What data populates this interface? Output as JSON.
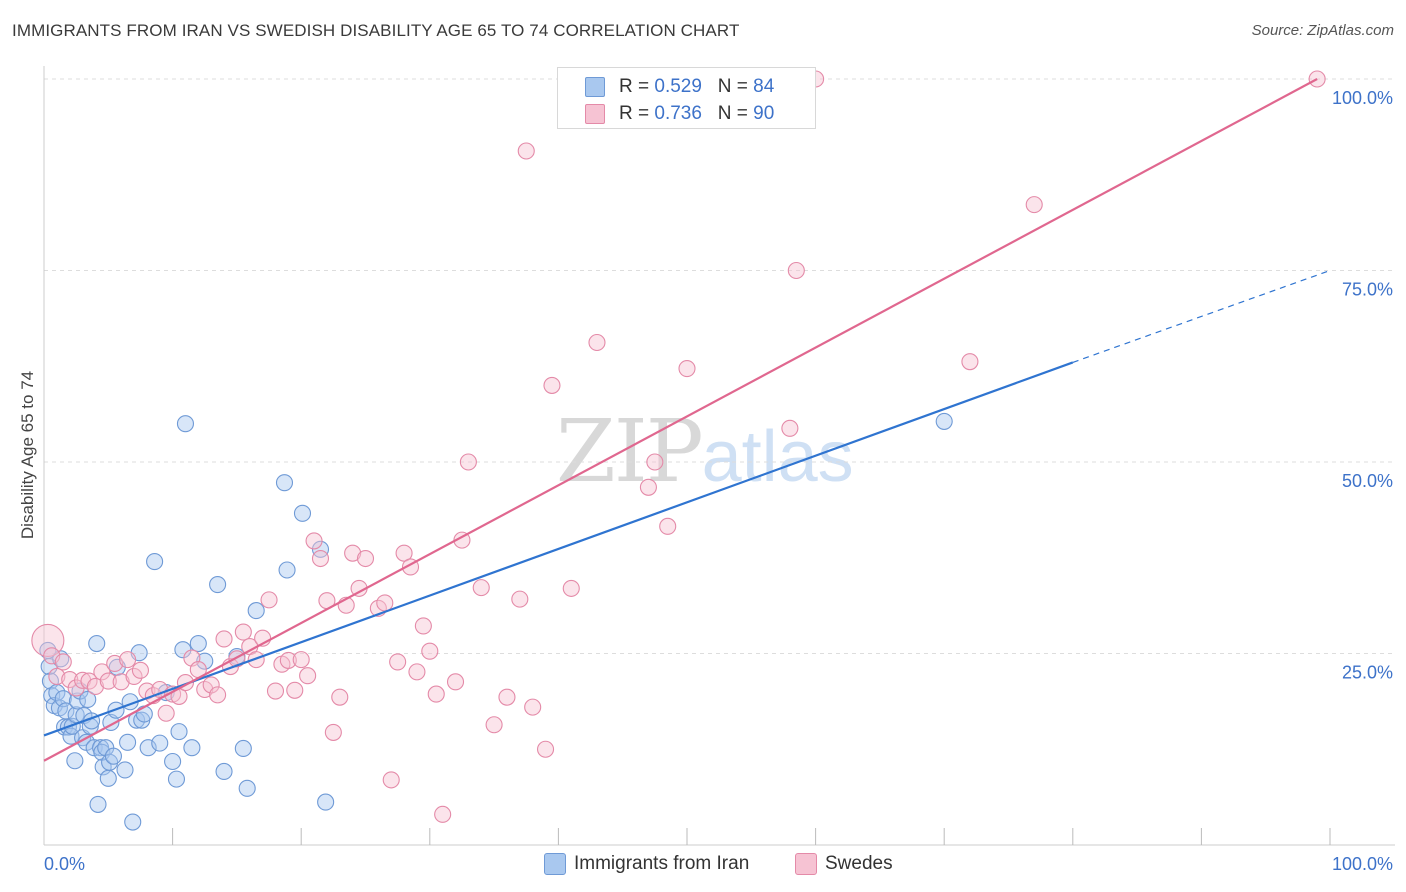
{
  "header": {
    "title": "IMMIGRANTS FROM IRAN VS SWEDISH DISABILITY AGE 65 TO 74 CORRELATION CHART",
    "source_label": "Source:",
    "source_value": "ZipAtlas.com"
  },
  "watermark": {
    "part1": "ZIP",
    "part2": "atlas"
  },
  "legend": {
    "rows": [
      {
        "r_label": "R = ",
        "r_value": "0.529",
        "n_label": "N = ",
        "n_value": "84"
      },
      {
        "r_label": "R = ",
        "r_value": "0.736",
        "n_label": "N = ",
        "n_value": "90"
      }
    ]
  },
  "bottom_legend": [
    "Immigrants from Iran",
    "Swedes"
  ],
  "colors": {
    "blue_fill": "#a9c8ef",
    "blue_stroke": "#6f9ad6",
    "blue_line": "#2f74d0",
    "pink_fill": "#f6c3d3",
    "pink_stroke": "#e48aa8",
    "pink_line": "#e0678f",
    "tick_text": "#3d72c9",
    "grid": "#dddddd"
  },
  "chart_data": {
    "type": "scatter",
    "title": "IMMIGRANTS FROM IRAN VS SWEDISH DISABILITY AGE 65 TO 74 CORRELATION CHART",
    "xlabel": "",
    "ylabel": "Disability Age 65 to 74",
    "xlim": [
      0,
      100
    ],
    "ylim": [
      0,
      100
    ],
    "x_tick_labels": [
      "0.0%",
      "100.0%"
    ],
    "y_tick_labels": [
      "25.0%",
      "50.0%",
      "75.0%",
      "100.0%"
    ],
    "y_ticks": [
      25,
      50,
      75,
      100
    ],
    "grid": true,
    "legend_position": "top-center",
    "series": [
      {
        "name": "Immigrants from Iran",
        "color": "#a9c8ef",
        "trend": {
          "x": [
            0,
            80
          ],
          "y": [
            14.3,
            63.0
          ],
          "dashed_to": [
            100,
            75.0
          ]
        },
        "points": [
          [
            0.3,
            25.4
          ],
          [
            0.4,
            23.3
          ],
          [
            0.5,
            21.4
          ],
          [
            0.6,
            19.5
          ],
          [
            0.8,
            18.2
          ],
          [
            1.0,
            19.9
          ],
          [
            1.2,
            17.9
          ],
          [
            1.3,
            24.3
          ],
          [
            1.5,
            19.1
          ],
          [
            1.6,
            15.4
          ],
          [
            1.7,
            17.5
          ],
          [
            1.9,
            15.4
          ],
          [
            2.1,
            14.2
          ],
          [
            2.2,
            15.5
          ],
          [
            2.4,
            11.0
          ],
          [
            2.5,
            17.0
          ],
          [
            2.6,
            18.8
          ],
          [
            2.8,
            20.1
          ],
          [
            3.0,
            14.0
          ],
          [
            3.1,
            16.9
          ],
          [
            3.3,
            13.4
          ],
          [
            3.4,
            19.0
          ],
          [
            3.6,
            15.5
          ],
          [
            3.7,
            16.2
          ],
          [
            3.9,
            12.7
          ],
          [
            4.1,
            26.3
          ],
          [
            4.2,
            5.3
          ],
          [
            4.4,
            12.7
          ],
          [
            4.5,
            12.1
          ],
          [
            4.6,
            10.2
          ],
          [
            4.8,
            12.7
          ],
          [
            5.0,
            8.7
          ],
          [
            5.1,
            10.8
          ],
          [
            5.2,
            16.0
          ],
          [
            5.4,
            11.6
          ],
          [
            5.6,
            17.6
          ],
          [
            5.7,
            23.2
          ],
          [
            6.3,
            9.8
          ],
          [
            6.5,
            13.4
          ],
          [
            6.7,
            18.7
          ],
          [
            6.9,
            3.0
          ],
          [
            7.2,
            16.3
          ],
          [
            7.4,
            25.1
          ],
          [
            7.6,
            16.3
          ],
          [
            7.8,
            17.1
          ],
          [
            8.1,
            12.7
          ],
          [
            8.6,
            37.0
          ],
          [
            9.0,
            13.3
          ],
          [
            9.5,
            19.9
          ],
          [
            10.0,
            10.9
          ],
          [
            10.3,
            8.6
          ],
          [
            10.5,
            14.8
          ],
          [
            10.8,
            25.5
          ],
          [
            11.0,
            55.0
          ],
          [
            11.5,
            12.7
          ],
          [
            12.0,
            26.3
          ],
          [
            12.5,
            24.0
          ],
          [
            13.5,
            34.0
          ],
          [
            14.0,
            9.6
          ],
          [
            15.0,
            24.6
          ],
          [
            15.5,
            12.6
          ],
          [
            15.8,
            7.4
          ],
          [
            16.5,
            30.6
          ],
          [
            18.7,
            47.3
          ],
          [
            18.9,
            35.9
          ],
          [
            20.1,
            43.3
          ],
          [
            21.5,
            38.6
          ],
          [
            21.9,
            5.6
          ],
          [
            70.0,
            55.3
          ]
        ]
      },
      {
        "name": "Swedes",
        "color": "#f6c3d3",
        "trend": {
          "x": [
            0,
            99
          ],
          "y": [
            11.0,
            100.0
          ]
        },
        "points": [
          [
            0.3,
            26.7
          ],
          [
            0.6,
            24.7
          ],
          [
            1.0,
            22.0
          ],
          [
            1.5,
            23.9
          ],
          [
            2.0,
            21.6
          ],
          [
            2.5,
            20.5
          ],
          [
            3.0,
            21.5
          ],
          [
            3.5,
            21.4
          ],
          [
            4.0,
            20.7
          ],
          [
            4.5,
            22.6
          ],
          [
            5.0,
            21.4
          ],
          [
            5.5,
            23.7
          ],
          [
            6.0,
            21.3
          ],
          [
            6.5,
            24.2
          ],
          [
            7.0,
            22.0
          ],
          [
            7.5,
            22.8
          ],
          [
            8.0,
            20.1
          ],
          [
            8.5,
            19.5
          ],
          [
            9.0,
            20.3
          ],
          [
            9.5,
            17.2
          ],
          [
            10.0,
            19.7
          ],
          [
            10.5,
            19.4
          ],
          [
            11.0,
            21.2
          ],
          [
            11.5,
            24.4
          ],
          [
            12.0,
            22.9
          ],
          [
            12.5,
            20.3
          ],
          [
            13.0,
            20.9
          ],
          [
            13.5,
            19.6
          ],
          [
            14.0,
            26.9
          ],
          [
            14.5,
            23.3
          ],
          [
            15.0,
            24.3
          ],
          [
            15.5,
            27.8
          ],
          [
            16.0,
            25.9
          ],
          [
            16.5,
            24.2
          ],
          [
            17.0,
            27.0
          ],
          [
            17.5,
            32.0
          ],
          [
            18.0,
            20.1
          ],
          [
            18.5,
            23.6
          ],
          [
            19.0,
            24.1
          ],
          [
            19.5,
            20.2
          ],
          [
            20.0,
            24.2
          ],
          [
            20.5,
            22.1
          ],
          [
            21.0,
            39.7
          ],
          [
            21.5,
            37.4
          ],
          [
            22.0,
            31.9
          ],
          [
            22.5,
            14.7
          ],
          [
            23.0,
            19.3
          ],
          [
            23.5,
            31.3
          ],
          [
            24.0,
            38.1
          ],
          [
            24.5,
            33.5
          ],
          [
            25.0,
            37.4
          ],
          [
            26.0,
            30.9
          ],
          [
            26.5,
            31.6
          ],
          [
            27.0,
            8.5
          ],
          [
            27.5,
            23.9
          ],
          [
            28.0,
            38.1
          ],
          [
            28.5,
            36.3
          ],
          [
            29.0,
            22.6
          ],
          [
            29.5,
            28.6
          ],
          [
            30.0,
            25.3
          ],
          [
            30.5,
            19.7
          ],
          [
            31.0,
            4.0
          ],
          [
            32.0,
            21.3
          ],
          [
            32.5,
            39.8
          ],
          [
            33.0,
            50.0
          ],
          [
            34.0,
            33.6
          ],
          [
            35.0,
            15.7
          ],
          [
            36.0,
            19.3
          ],
          [
            37.0,
            32.1
          ],
          [
            37.5,
            90.6
          ],
          [
            38.0,
            18.0
          ],
          [
            39.0,
            12.5
          ],
          [
            39.5,
            60.0
          ],
          [
            41.0,
            33.5
          ],
          [
            43.0,
            65.6
          ],
          [
            47.0,
            46.7
          ],
          [
            47.5,
            50.0
          ],
          [
            48.5,
            41.6
          ],
          [
            50.0,
            62.2
          ],
          [
            54.0,
            100.0
          ],
          [
            58.0,
            54.4
          ],
          [
            58.5,
            75.0
          ],
          [
            72.0,
            63.1
          ],
          [
            77.0,
            83.6
          ],
          [
            99.0,
            100.0
          ],
          [
            60.0,
            100.0
          ]
        ]
      }
    ]
  }
}
